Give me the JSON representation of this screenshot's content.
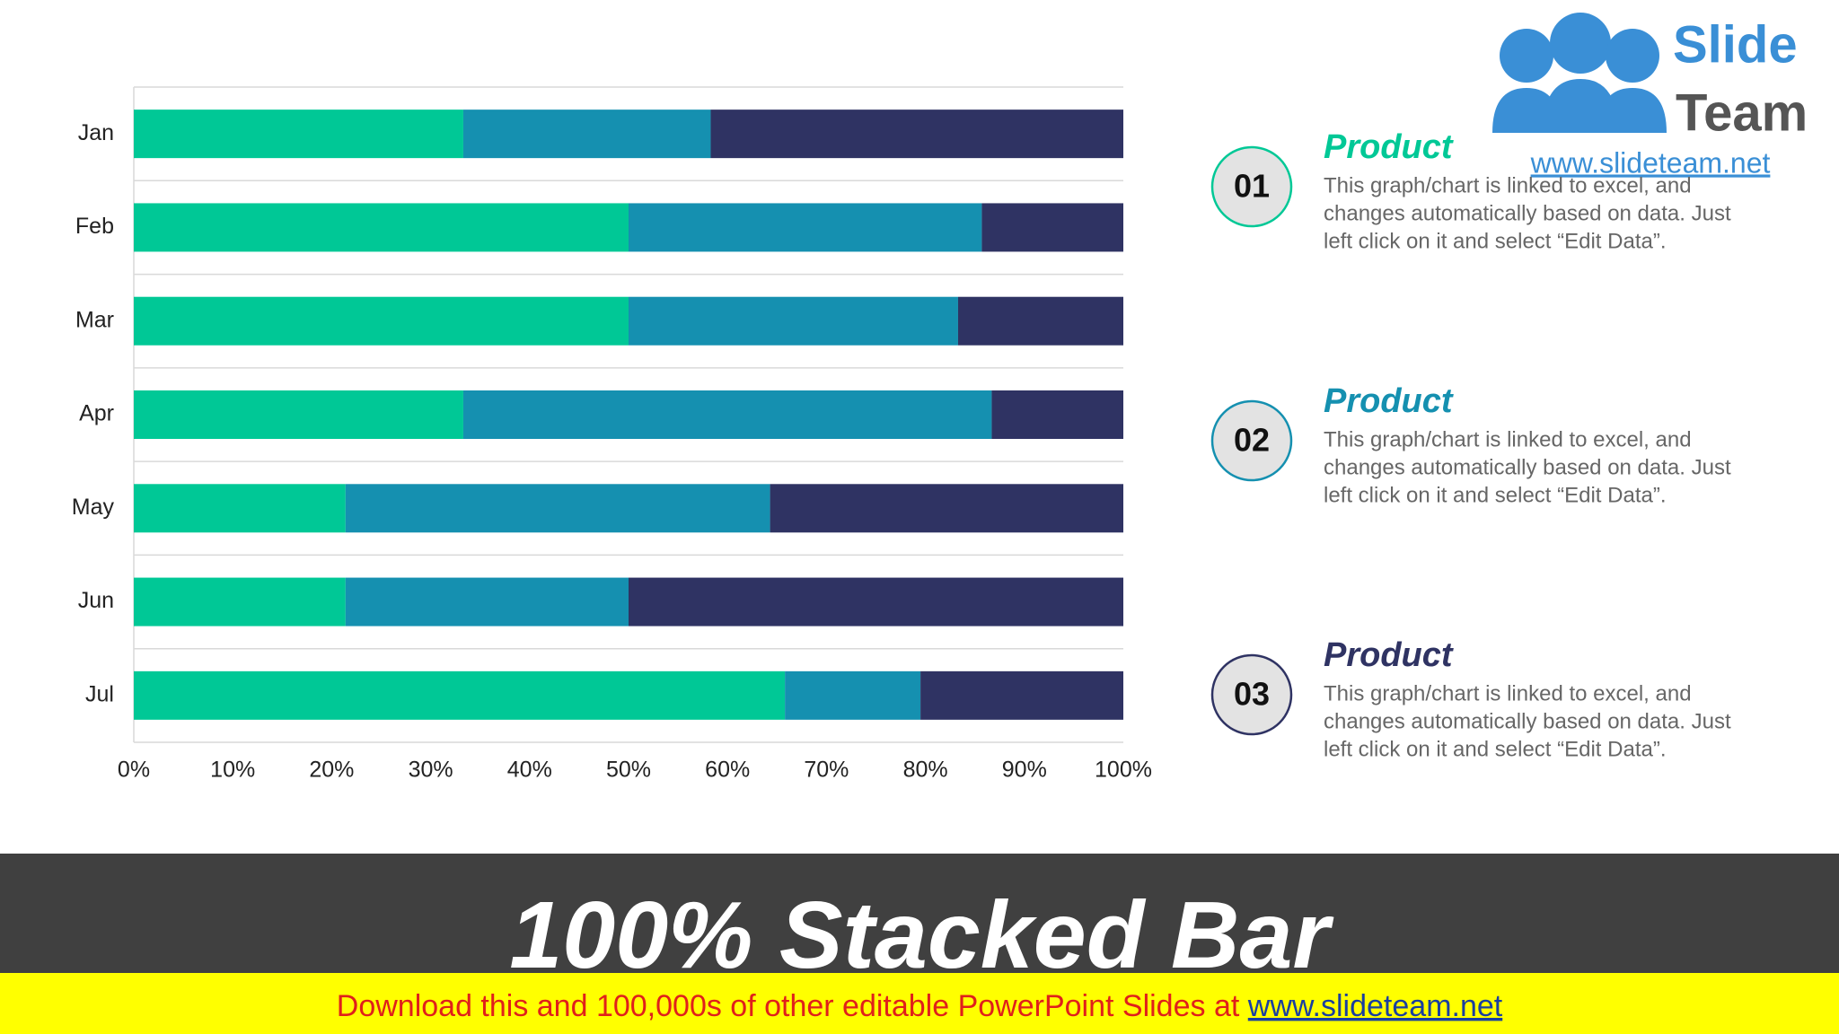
{
  "chart_data": {
    "type": "stacked_bar_100",
    "categories": [
      "Jan",
      "Feb",
      "Mar",
      "Apr",
      "May",
      "Jun",
      "Jul"
    ],
    "series": [
      {
        "color": "#00c896",
        "values": [
          33.3,
          50,
          50,
          33.3,
          21.4,
          21.4,
          65.8
        ]
      },
      {
        "color": "#1590b0",
        "values": [
          25,
          35.7,
          33.3,
          53.4,
          42.9,
          28.6,
          13.7
        ]
      },
      {
        "color": "#2f3363",
        "values": [
          41.7,
          14.3,
          16.7,
          13.3,
          35.7,
          50,
          20.5
        ]
      }
    ],
    "xlim": [
      0,
      100
    ],
    "xticks": [
      {
        "value": 0,
        "label": "0%"
      },
      {
        "value": 10,
        "label": "10%"
      },
      {
        "value": 20,
        "label": "20%"
      },
      {
        "value": 30,
        "label": "30%"
      },
      {
        "value": 40,
        "label": "40%"
      },
      {
        "value": 50,
        "label": "50%"
      },
      {
        "value": 60,
        "label": "60%"
      },
      {
        "value": 70,
        "label": "70%"
      },
      {
        "value": 80,
        "label": "80%"
      },
      {
        "value": 90,
        "label": "90%"
      },
      {
        "value": 100,
        "label": "100%"
      }
    ]
  },
  "panels": [
    {
      "number": "01",
      "heading": "Product",
      "lines": [
        "This graph/chart is linked to excel, and",
        "changes automatically based on data. Just",
        "left click on it and select “Edit Data”."
      ]
    },
    {
      "number": "02",
      "heading": "Product",
      "lines": [
        "This graph/chart is linked to excel, and",
        "changes automatically based on data. Just",
        "left click on it and select “Edit Data”."
      ]
    },
    {
      "number": "03",
      "heading": "Product",
      "lines": [
        "This graph/chart is linked to excel, and",
        "changes automatically based on data. Just",
        "left click on it and select “Edit Data”."
      ]
    }
  ],
  "logo": {
    "word1": "Slide",
    "word2": "Team",
    "url": "www.slideteam.net"
  },
  "title": "100% Stacked Bar",
  "banner": {
    "text": "Download this and 100,000s of other editable PowerPoint Slides at",
    "link": "www.slideteam.net"
  }
}
